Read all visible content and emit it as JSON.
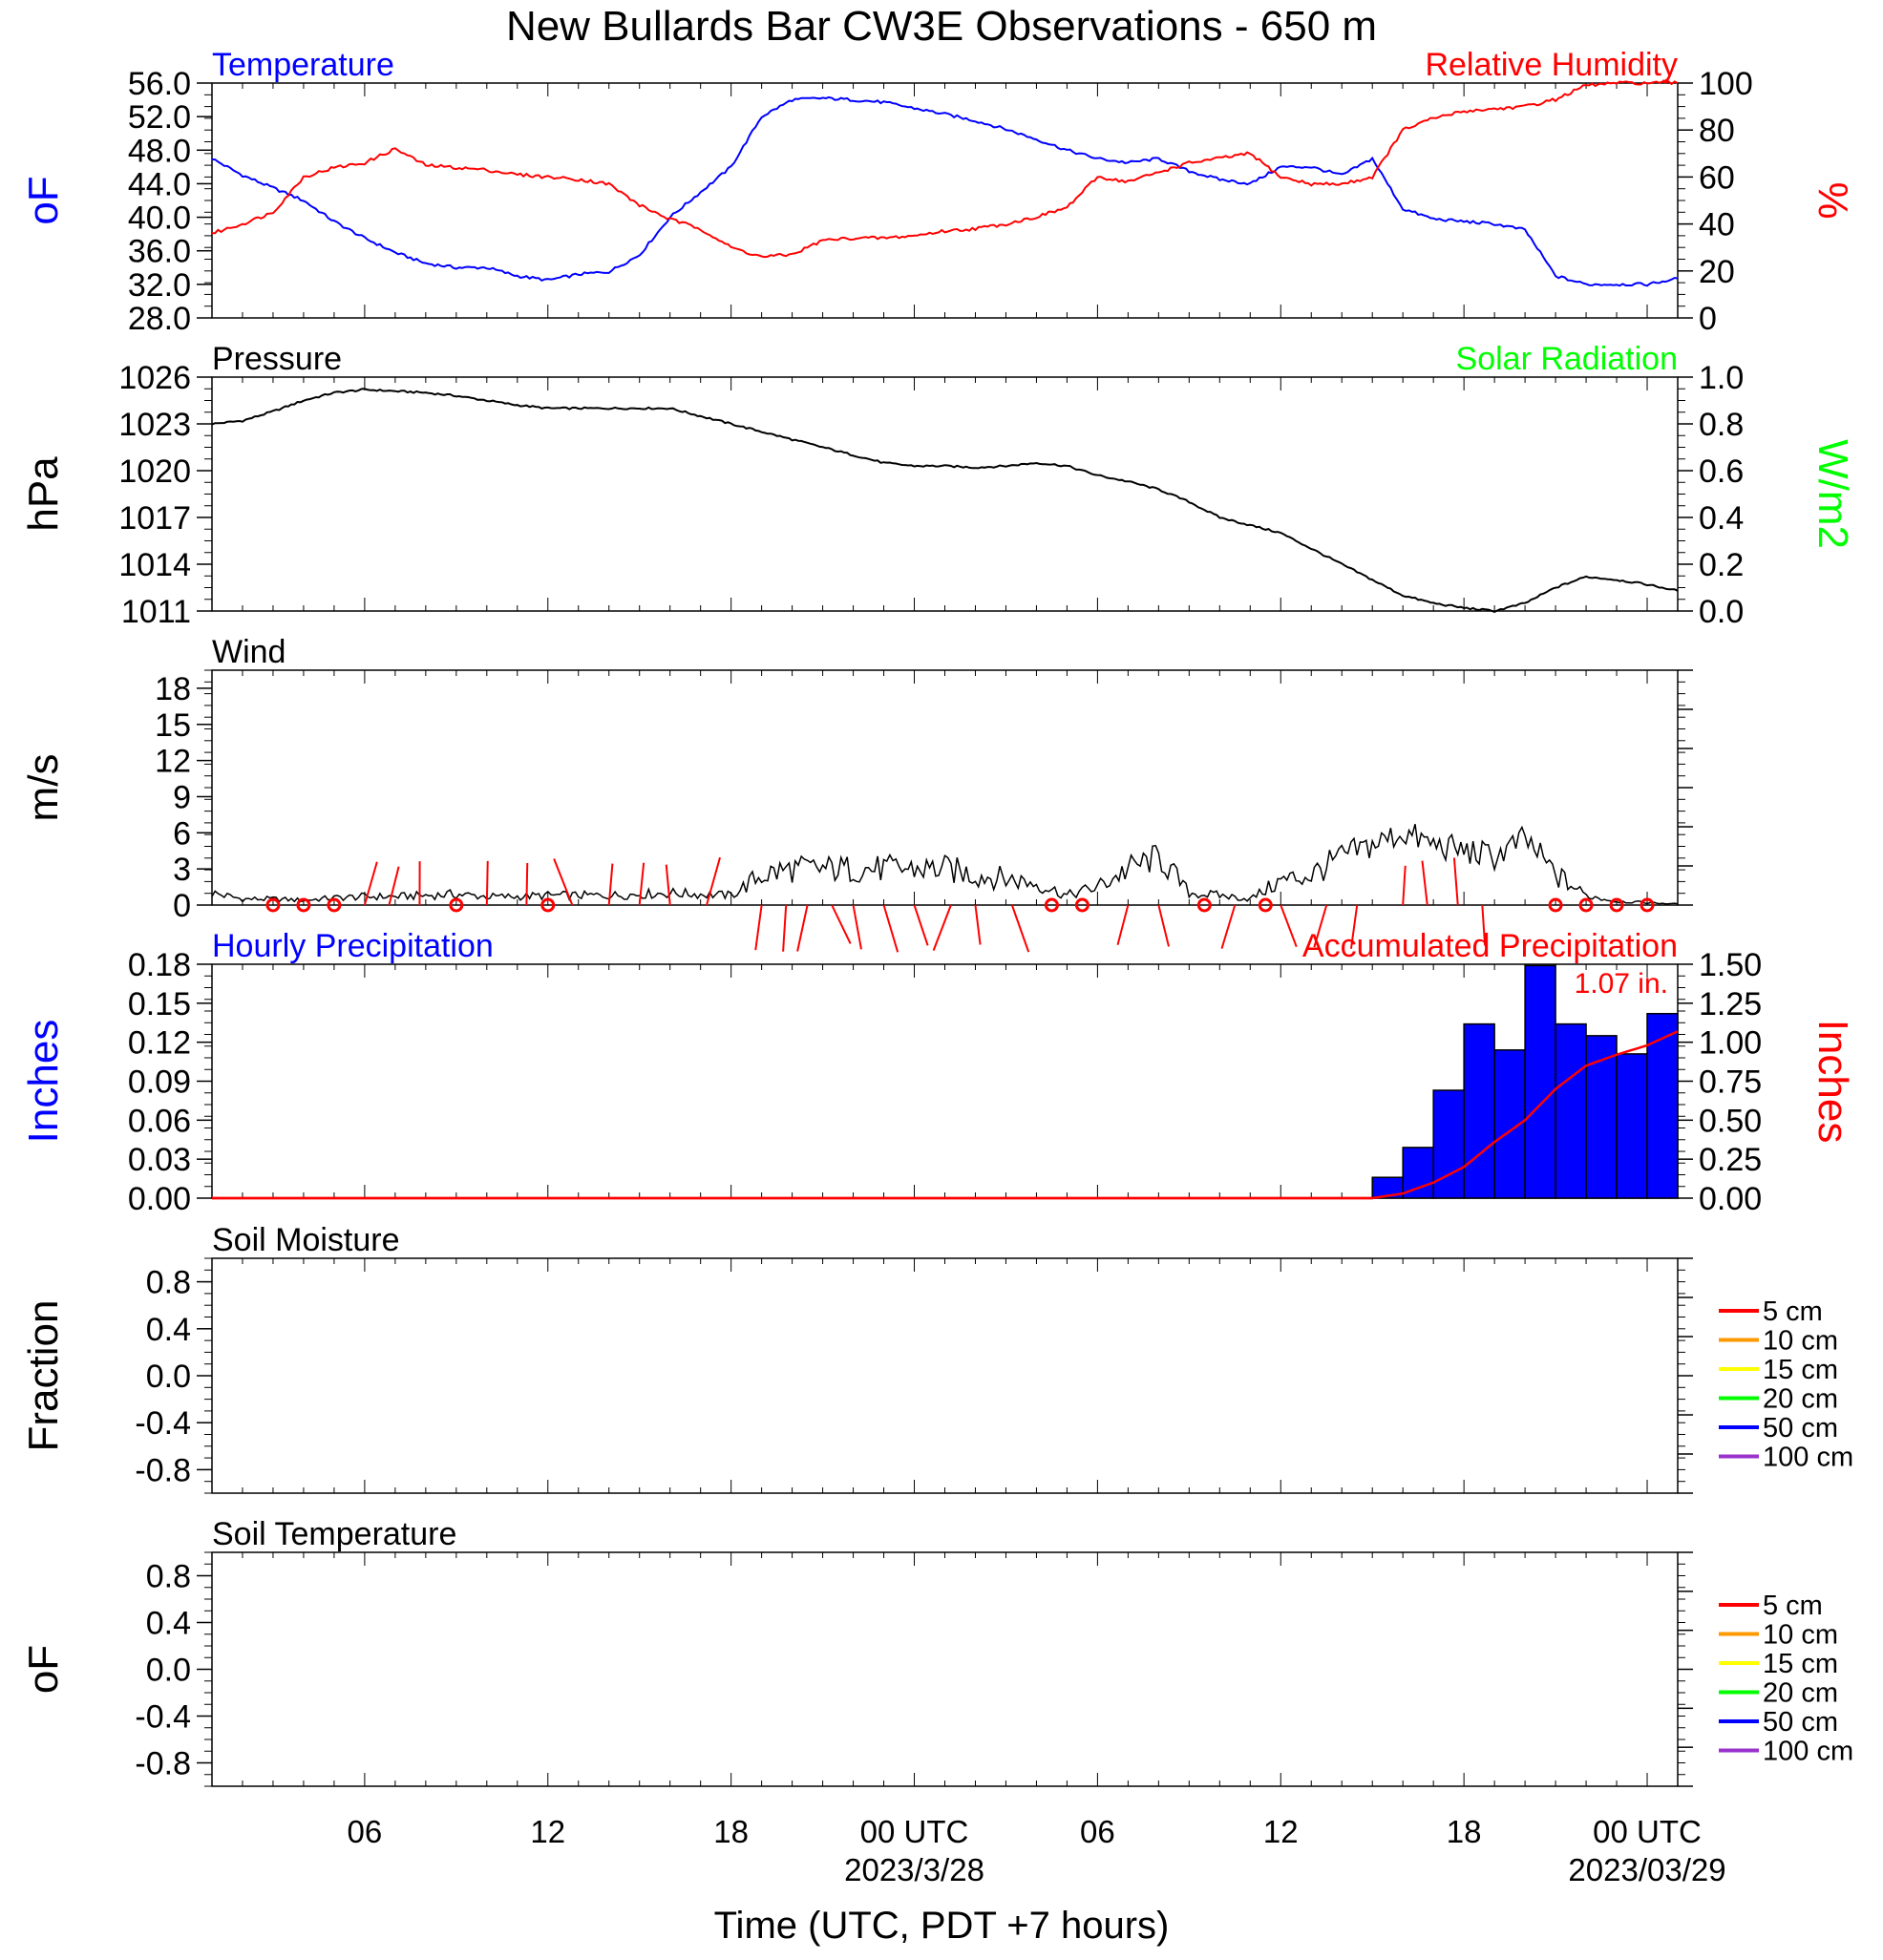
{
  "title": "New Bullards Bar CW3E Observations - 650 m",
  "x_axis_label": "Time (UTC, PDT +7 hours)",
  "x_ticks": [
    {
      "hour": 6,
      "label": "06"
    },
    {
      "hour": 12,
      "label": "12"
    },
    {
      "hour": 18,
      "label": "18"
    },
    {
      "hour": 24,
      "label": "00 UTC",
      "sub": "2023/3/28"
    },
    {
      "hour": 30,
      "label": "06"
    },
    {
      "hour": 36,
      "label": "12"
    },
    {
      "hour": 42,
      "label": "18"
    },
    {
      "hour": 48,
      "label": "00 UTC",
      "sub": "2023/03/29"
    }
  ],
  "chart_data": [
    {
      "type": "line",
      "panel": "temperature-humidity",
      "left_title": "Temperature",
      "right_title": "Relative Humidity",
      "ylabel": "oF",
      "y2label": "%",
      "xlim": [
        1,
        49
      ],
      "ylim": [
        28,
        56
      ],
      "yticks": [
        "28.0",
        "32.0",
        "36.0",
        "40.0",
        "44.0",
        "48.0",
        "52.0",
        "56.0"
      ],
      "y2lim": [
        0,
        100
      ],
      "y2ticks": [
        "0",
        "20",
        "40",
        "60",
        "80",
        "100"
      ],
      "colors": {
        "temperature": "#0000ff",
        "humidity": "#ff0000"
      },
      "series": [
        {
          "name": "Temperature",
          "axis": "left",
          "x": [
            1,
            2,
            3,
            4,
            5,
            6,
            7,
            8,
            9,
            10,
            11,
            12,
            13,
            14,
            15,
            16,
            17,
            18,
            19,
            20,
            21,
            22,
            23,
            24,
            25,
            26,
            27,
            28,
            29,
            30,
            31,
            32,
            33,
            34,
            35,
            36,
            37,
            38,
            39,
            40,
            41,
            42,
            43,
            44,
            45,
            46,
            47,
            48,
            49
          ],
          "y": [
            47,
            45,
            43.5,
            42,
            39.5,
            37.5,
            35.8,
            34.5,
            34,
            34,
            33,
            32.5,
            33.2,
            33.5,
            35.5,
            40,
            43,
            46,
            52,
            54,
            54.2,
            54,
            53.7,
            53,
            52.3,
            51.5,
            50.5,
            49.3,
            48,
            47,
            46.5,
            47,
            45.5,
            44.5,
            44,
            46,
            46,
            45,
            47,
            41,
            39.8,
            39.5,
            39.2,
            38.5,
            33,
            32,
            32,
            32,
            32.7
          ]
        },
        {
          "name": "Relative Humidity",
          "axis": "right",
          "x": [
            1,
            2,
            3,
            4,
            5,
            6,
            7,
            8,
            9,
            10,
            11,
            12,
            13,
            14,
            15,
            16,
            17,
            18,
            19,
            20,
            21,
            22,
            23,
            24,
            25,
            26,
            27,
            28,
            29,
            30,
            31,
            32,
            33,
            34,
            35,
            36,
            37,
            38,
            39,
            40,
            41,
            42,
            43,
            44,
            45,
            46,
            47,
            48,
            49
          ],
          "y": [
            36,
            40,
            45,
            60,
            64,
            66,
            72,
            65,
            64,
            63,
            61,
            60,
            59,
            57,
            48,
            42,
            38,
            30,
            26,
            27,
            33,
            34,
            34,
            35,
            37,
            38,
            40,
            43,
            47,
            60,
            58,
            62,
            66,
            68,
            70,
            60,
            57,
            57,
            60,
            80,
            85,
            88,
            89,
            90,
            93,
            99,
            100,
            100,
            100
          ]
        }
      ]
    },
    {
      "type": "line",
      "panel": "pressure-solar",
      "left_title": "Pressure",
      "right_title": "Solar Radiation",
      "ylabel": "hPa",
      "y2label": "W/m2",
      "xlim": [
        1,
        49
      ],
      "ylim": [
        1011,
        1026
      ],
      "yticks": [
        "1011",
        "1014",
        "1017",
        "1020",
        "1023",
        "1026"
      ],
      "y2lim": [
        0,
        1
      ],
      "y2ticks": [
        "0.0",
        "0.2",
        "0.4",
        "0.6",
        "0.8",
        "1.0"
      ],
      "colors": {
        "pressure": "#000000",
        "solar": "#00ff00"
      },
      "series": [
        {
          "name": "Pressure",
          "axis": "left",
          "x": [
            1,
            2,
            3,
            4,
            5,
            6,
            7,
            8,
            9,
            10,
            11,
            12,
            13,
            14,
            15,
            16,
            17,
            18,
            19,
            20,
            21,
            22,
            23,
            24,
            25,
            26,
            27,
            28,
            29,
            30,
            31,
            32,
            33,
            34,
            35,
            36,
            37,
            38,
            39,
            40,
            41,
            42,
            43,
            44,
            45,
            46,
            47,
            48,
            49
          ],
          "y": [
            1023,
            1023.2,
            1023.8,
            1024.5,
            1025,
            1025.2,
            1025.1,
            1025,
            1024.8,
            1024.5,
            1024.2,
            1024,
            1024,
            1024,
            1024,
            1024,
            1023.5,
            1023,
            1022.5,
            1022,
            1021.5,
            1021,
            1020.5,
            1020.3,
            1020.3,
            1020.2,
            1020.3,
            1020.5,
            1020.3,
            1019.7,
            1019.3,
            1018.8,
            1018,
            1017,
            1016.5,
            1016,
            1015,
            1014,
            1013,
            1012,
            1011.5,
            1011.2,
            1011,
            1011.5,
            1012.5,
            1013.2,
            1013,
            1012.7,
            1012.3
          ]
        }
      ]
    },
    {
      "type": "line",
      "panel": "wind",
      "left_title": "Wind",
      "ylabel": "m/s",
      "xlim": [
        1,
        49
      ],
      "ylim": [
        0,
        19.5
      ],
      "yticks": [
        "0",
        "3",
        "6",
        "9",
        "12",
        "15",
        "18"
      ],
      "colors": {
        "wind": "#000000",
        "barbs": "#ff0000"
      },
      "series": [
        {
          "name": "Wind speed",
          "axis": "left",
          "x": [
            1,
            2,
            3,
            4,
            5,
            6,
            7,
            8,
            9,
            10,
            11,
            12,
            13,
            14,
            15,
            16,
            17,
            18,
            19,
            20,
            21,
            22,
            23,
            24,
            25,
            26,
            27,
            28,
            29,
            30,
            31,
            32,
            33,
            34,
            35,
            36,
            37,
            38,
            39,
            40,
            41,
            42,
            43,
            44,
            45,
            46,
            47,
            48,
            49
          ],
          "y": [
            1,
            0.5,
            0.5,
            0.4,
            0.6,
            0.7,
            0.7,
            0.8,
            0.9,
            0.7,
            0.7,
            0.8,
            0.8,
            0.8,
            0.9,
            1,
            0.9,
            0.8,
            2.5,
            3,
            3,
            3,
            3,
            3,
            3,
            2.5,
            2.2,
            1.8,
            0.8,
            1.5,
            3,
            4,
            1,
            0.8,
            0.5,
            2,
            2.5,
            4,
            5,
            6,
            5,
            4.5,
            4,
            5.5,
            2.5,
            0.8,
            0.3,
            0.2,
            0.1
          ]
        }
      ],
      "calm_markers_hours": [
        3,
        4,
        5,
        9,
        12,
        28.5,
        29.5,
        33.5,
        35.5,
        45,
        46,
        47,
        48
      ],
      "barb_hours": [
        6,
        6.8,
        7.8,
        10,
        11.3,
        12.8,
        14,
        15,
        16,
        17.2,
        19,
        19.8,
        20.5,
        21.3,
        22,
        23,
        24,
        25.2,
        26,
        27.2,
        31,
        32,
        34.5,
        36,
        37.5,
        38.5,
        40,
        40.8,
        41.8,
        42.6
      ]
    },
    {
      "type": "bar",
      "panel": "precipitation",
      "left_title": "Hourly Precipitation",
      "right_title": "Accumulated Precipitation",
      "ylabel": "Inches",
      "y2label": "Inches",
      "xlim": [
        1,
        49
      ],
      "ylim": [
        0,
        0.18
      ],
      "yticks": [
        "0.00",
        "0.03",
        "0.06",
        "0.09",
        "0.12",
        "0.15",
        "0.18"
      ],
      "y2lim": [
        0,
        1.5
      ],
      "y2ticks": [
        "0.00",
        "0.25",
        "0.50",
        "0.75",
        "1.00",
        "1.25",
        "1.50"
      ],
      "annotation": "1.07 in.",
      "colors": {
        "bars": "#0000ff",
        "accum": "#ff0000"
      },
      "bar_start_hours": [
        39,
        40,
        41,
        42,
        43,
        44,
        45,
        46,
        47,
        48
      ],
      "values": [
        0.016,
        0.039,
        0.083,
        0.134,
        0.114,
        0.179,
        0.134,
        0.125,
        0.111,
        0.142
      ],
      "series": [
        {
          "name": "Accumulated Precipitation",
          "axis": "right",
          "x": [
            1,
            39,
            40,
            41,
            42,
            43,
            44,
            45,
            46,
            47,
            48,
            49
          ],
          "y": [
            0,
            0,
            0.03,
            0.1,
            0.2,
            0.36,
            0.5,
            0.7,
            0.85,
            0.92,
            0.98,
            1.07
          ]
        }
      ]
    },
    {
      "type": "line",
      "panel": "soil-moisture",
      "left_title": "Soil Moisture",
      "ylabel": "Fraction",
      "xlim": [
        1,
        49
      ],
      "ylim": [
        -1,
        1
      ],
      "yticks": [
        "-0.8",
        "-0.4",
        "0.0",
        "0.4",
        "0.8"
      ],
      "legend": [
        {
          "label": "5 cm",
          "color": "#ff0000"
        },
        {
          "label": "10 cm",
          "color": "#ff9900"
        },
        {
          "label": "15 cm",
          "color": "#ffff00"
        },
        {
          "label": "20 cm",
          "color": "#00ff00"
        },
        {
          "label": "50 cm",
          "color": "#0000ff"
        },
        {
          "label": "100 cm",
          "color": "#9933cc"
        }
      ],
      "series": []
    },
    {
      "type": "line",
      "panel": "soil-temperature",
      "left_title": "Soil Temperature",
      "ylabel": "oF",
      "xlim": [
        1,
        49
      ],
      "ylim": [
        -1,
        1
      ],
      "yticks": [
        "-0.8",
        "-0.4",
        "0.0",
        "0.4",
        "0.8"
      ],
      "legend": [
        {
          "label": "5 cm",
          "color": "#ff0000"
        },
        {
          "label": "10 cm",
          "color": "#ff9900"
        },
        {
          "label": "15 cm",
          "color": "#ffff00"
        },
        {
          "label": "20 cm",
          "color": "#00ff00"
        },
        {
          "label": "50 cm",
          "color": "#0000ff"
        },
        {
          "label": "100 cm",
          "color": "#9933cc"
        }
      ],
      "series": []
    }
  ]
}
